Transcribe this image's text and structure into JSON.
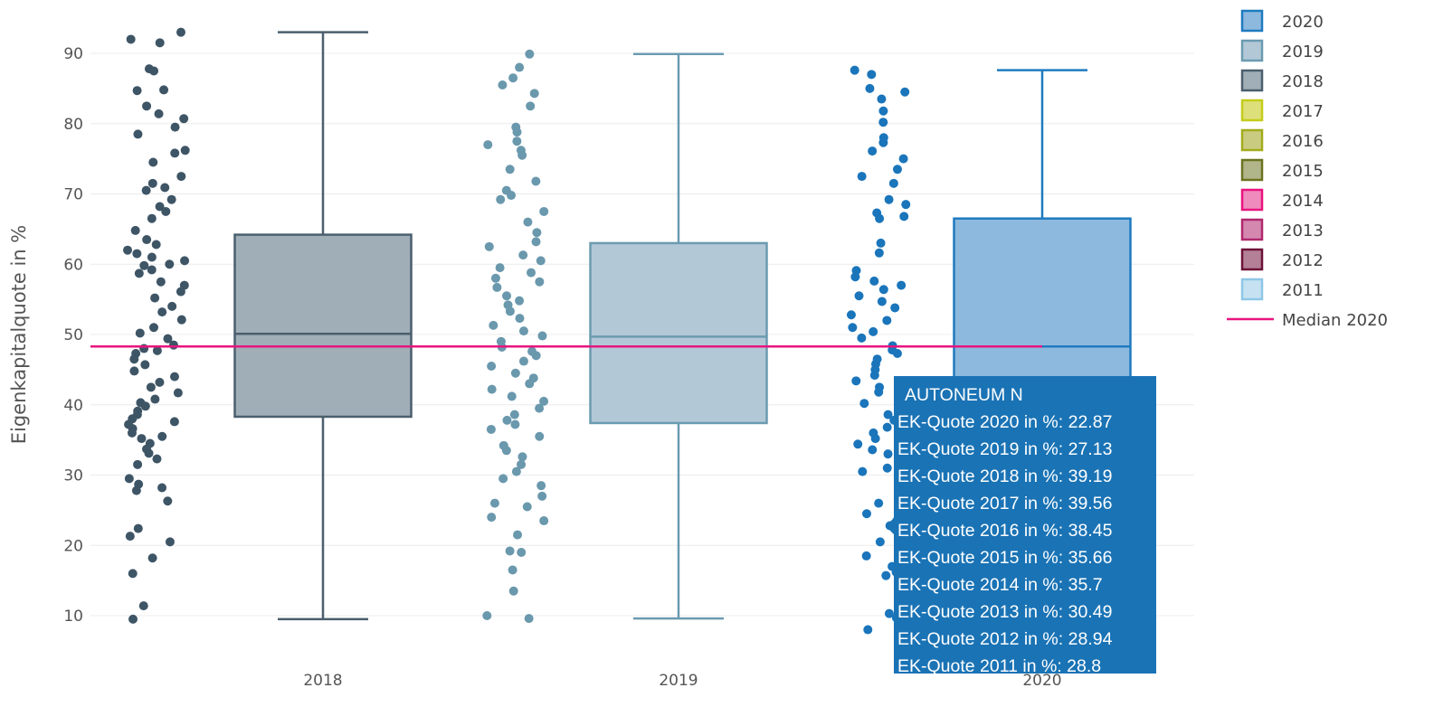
{
  "chart_data": {
    "type": "box",
    "ylabel": "Eigenkapitalquote in %",
    "xlabel": "",
    "ylim": [
      5,
      96
    ],
    "yticks": [
      10,
      20,
      30,
      40,
      50,
      60,
      70,
      80,
      90
    ],
    "categories": [
      "2018",
      "2019",
      "2020"
    ],
    "grid": true,
    "legend_placement": "right",
    "series": [
      {
        "name": "2018",
        "stroke": "#4b5f6d",
        "fill": "#9faeb7",
        "point_color": "#3e5566",
        "min": 9.5,
        "q1": 38.3,
        "median": 50.1,
        "q3": 64.2,
        "max": 93.0,
        "points": [
          93,
          92,
          91.5,
          87.8,
          87.5,
          84.8,
          84.7,
          82.5,
          81.4,
          80.7,
          79.5,
          78.5,
          76.2,
          75.8,
          74.5,
          72.5,
          71.5,
          70.9,
          70.5,
          69.2,
          68.2,
          67.5,
          66.5,
          64.8,
          63.5,
          62.8,
          62,
          61.5,
          61,
          60.5,
          60,
          59.8,
          59.2,
          58.7,
          57.5,
          57,
          56.1,
          55.2,
          54,
          53.2,
          52.1,
          51,
          50.2,
          49.4,
          48.5,
          48,
          47.7,
          47.3,
          46.5,
          45.7,
          44.8,
          44,
          43.2,
          42.5,
          41.7,
          40.8,
          40.3,
          39.8,
          39.1,
          38.6,
          38,
          37.6,
          37.2,
          36.6,
          36,
          35.5,
          35.2,
          34.5,
          33.7,
          33.1,
          32.3,
          31.5,
          29.5,
          28.7,
          28.2,
          27.8,
          26.3,
          22.4,
          21.3,
          20.5,
          18.2,
          16,
          11.4,
          9.5
        ]
      },
      {
        "name": "2019",
        "stroke": "#6b9bb1",
        "fill": "#b3c8d6",
        "point_color": "#6a98ad",
        "min": 9.6,
        "q1": 37.4,
        "median": 49.7,
        "q3": 63.0,
        "max": 89.9,
        "points": [
          89.9,
          88,
          86.5,
          85.5,
          84.3,
          82.5,
          79.5,
          78.8,
          77.5,
          77,
          76.2,
          75.5,
          73.5,
          71.8,
          70.5,
          69.8,
          69.2,
          67.5,
          66,
          64.5,
          63.2,
          62.5,
          61.3,
          60.5,
          59.5,
          58.8,
          58,
          57.5,
          56.7,
          55.5,
          54.8,
          54.2,
          53.3,
          52.3,
          51.3,
          50.5,
          49.8,
          49,
          48.2,
          47.6,
          47,
          46.2,
          45.5,
          44.5,
          43.8,
          43,
          42.2,
          41.2,
          40.5,
          39.5,
          38.6,
          37.8,
          37.2,
          36.5,
          35.5,
          34.2,
          33.5,
          32.6,
          31.5,
          30.5,
          29.5,
          28.5,
          27,
          26,
          25.5,
          24,
          23.5,
          21.5,
          19.2,
          19,
          16.5,
          13.5,
          10,
          9.6
        ]
      },
      {
        "name": "2020",
        "stroke": "#1f7bc0",
        "fill": "#8db9de",
        "point_color": "#1a75bb",
        "min": 8.0,
        "q1": 36.0,
        "median": 48.3,
        "q3": 66.5,
        "max": 87.6,
        "points": [
          87.6,
          87,
          85,
          84.5,
          83.5,
          81.8,
          80.2,
          78,
          77.3,
          76.1,
          75,
          73.5,
          72.5,
          71.5,
          69.2,
          68.5,
          67.3,
          66.8,
          66.5,
          63,
          61.6,
          59.1,
          58.2,
          57.6,
          57,
          56.4,
          55.5,
          54.7,
          53.8,
          52.8,
          52,
          51,
          50.4,
          49.5,
          48.4,
          47.8,
          47.3,
          46.5,
          45.8,
          45,
          44.2,
          43.4,
          42.5,
          41.8,
          41,
          40.2,
          39.5,
          38.6,
          37.8,
          36.8,
          36,
          35.2,
          34.4,
          33.6,
          33,
          32.5,
          31,
          30.5,
          29.5,
          28.5,
          27.7,
          26,
          24.5,
          23.5,
          22.8,
          20.5,
          18.5,
          17,
          16.2,
          15.7,
          10.3,
          9.7,
          8.5,
          8
        ]
      }
    ],
    "reference_line": {
      "name": "Median 2020",
      "value": 48.3,
      "color": "#e8157f"
    },
    "legend": [
      {
        "label": "2020",
        "stroke": "#1f7bc0",
        "fill": "#8db9de"
      },
      {
        "label": "2019",
        "stroke": "#6b9bb1",
        "fill": "#b3c8d6"
      },
      {
        "label": "2018",
        "stroke": "#4b5f6d",
        "fill": "#9faeb7"
      },
      {
        "label": "2017",
        "stroke": "#c4cc1a",
        "fill": "#dde07a"
      },
      {
        "label": "2016",
        "stroke": "#a3ab1e",
        "fill": "#c9cc80"
      },
      {
        "label": "2015",
        "stroke": "#6b7320",
        "fill": "#b0b58a"
      },
      {
        "label": "2014",
        "stroke": "#e8157f",
        "fill": "#f08bbd"
      },
      {
        "label": "2013",
        "stroke": "#b0286e",
        "fill": "#d488b0"
      },
      {
        "label": "2012",
        "stroke": "#6e1338",
        "fill": "#b38097"
      },
      {
        "label": "2011",
        "stroke": "#8ec7e6",
        "fill": "#c6e2f2"
      },
      {
        "label": "Median 2020",
        "stroke": "#e8157f",
        "line": true
      }
    ]
  },
  "tooltip": {
    "title": "AUTONEUM N",
    "rows": [
      "EK-Quote 2020 in %: 22.87",
      "EK-Quote 2019 in %: 27.13",
      "EK-Quote 2018 in %: 39.19",
      "EK-Quote 2017 in %: 39.56",
      "EK-Quote 2016 in %: 38.45",
      "EK-Quote 2015 in %: 35.66",
      "EK-Quote 2014 in %: 35.7",
      "EK-Quote 2013 in %: 30.49",
      "EK-Quote 2012 in %: 28.94",
      "EK-Quote 2011 in %: 28.8"
    ]
  }
}
